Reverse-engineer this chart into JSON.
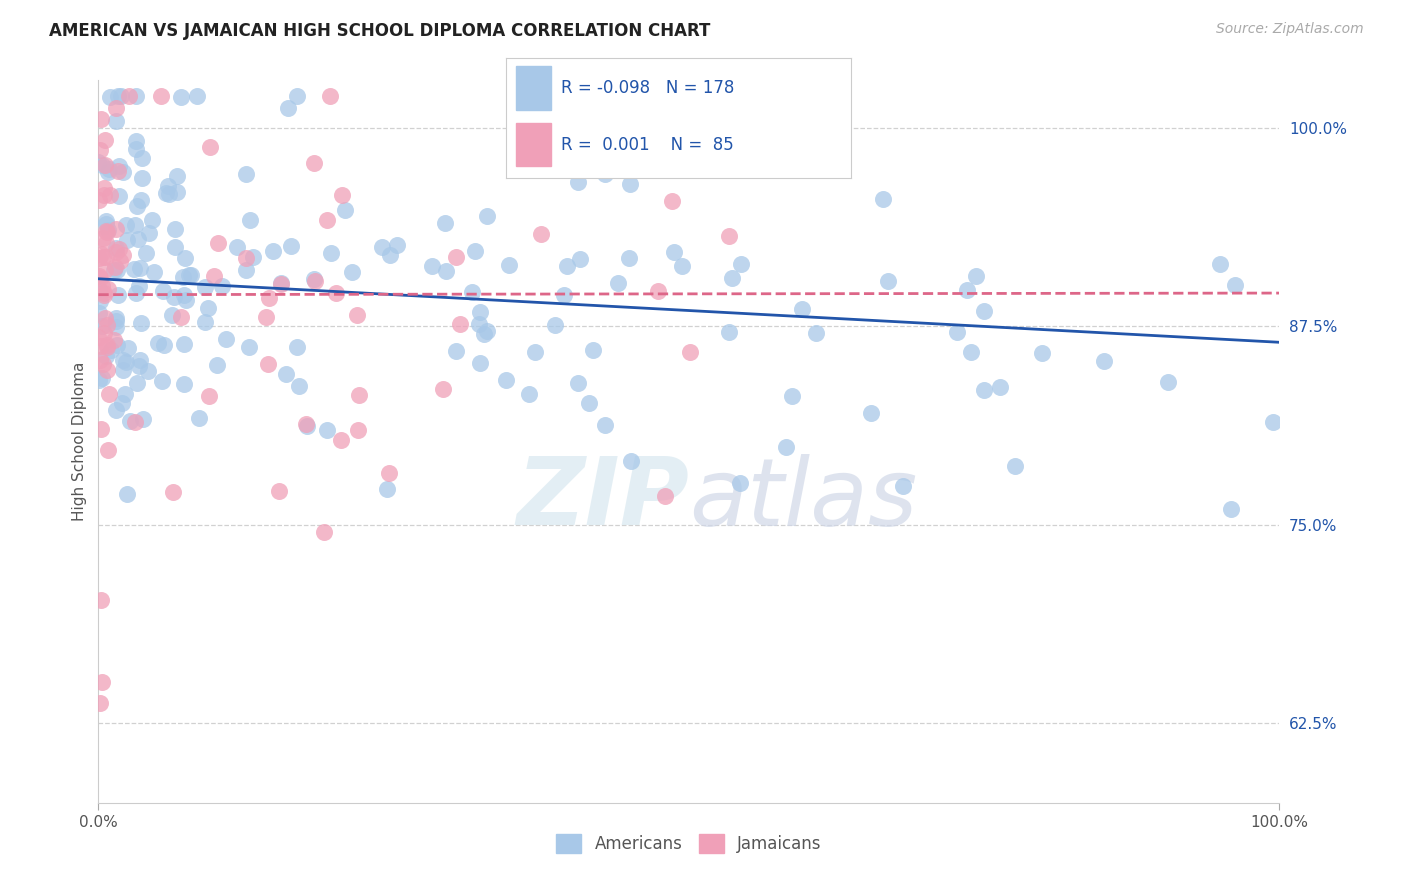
{
  "title": "AMERICAN VS JAMAICAN HIGH SCHOOL DIPLOMA CORRELATION CHART",
  "source": "Source: ZipAtlas.com",
  "ylabel": "High School Diploma",
  "background_color": "#ffffff",
  "american_color": "#a8c8e8",
  "jamaican_color": "#f0a0b8",
  "american_line_color": "#2255aa",
  "jamaican_line_color": "#dd6688",
  "american_r": "-0.098",
  "american_n": "178",
  "jamaican_r": "0.001",
  "jamaican_n": "85",
  "xlim": [
    0,
    1
  ],
  "ylim": [
    0.575,
    1.03
  ],
  "yticks": [
    0.625,
    0.75,
    0.875,
    1.0
  ],
  "ytick_labels": [
    "62.5%",
    "75.0%",
    "87.5%",
    "100.0%"
  ],
  "xticks": [
    0.0,
    1.0
  ],
  "xtick_labels": [
    "0.0%",
    "100.0%"
  ],
  "am_trend_x0": 0.0,
  "am_trend_y0": 0.905,
  "am_trend_x1": 1.0,
  "am_trend_y1": 0.865,
  "ja_trend_x0": 0.0,
  "ja_trend_y0": 0.895,
  "ja_trend_x1": 1.0,
  "ja_trend_y1": 0.896,
  "title_fontsize": 12,
  "axis_label_fontsize": 11,
  "tick_fontsize": 11,
  "source_fontsize": 10
}
